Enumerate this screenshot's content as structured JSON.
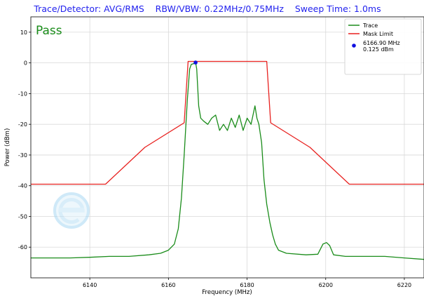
{
  "chart_data": {
    "type": "line",
    "title": "Trace/Detector: AVG/RMS    RBW/VBW: 0.22MHz/0.75MHz    Sweep Time: 1.0ms",
    "status_text": "Pass",
    "xlabel": "Frequency (MHz)",
    "ylabel": "Power (dBm)",
    "xlim": [
      6125,
      6225
    ],
    "ylim": [
      -70,
      15
    ],
    "x_ticks": [
      6140,
      6160,
      6180,
      6200,
      6220
    ],
    "y_ticks": [
      10,
      0,
      -10,
      -20,
      -30,
      -40,
      -50,
      -60
    ],
    "grid": true,
    "legend_position": "top-right",
    "series": [
      {
        "name": "Trace",
        "color": "#1a8c1a",
        "x": [
          6125,
          6130,
          6135,
          6140,
          6145,
          6150,
          6155,
          6158,
          6160,
          6161.5,
          6162.5,
          6163.3,
          6164,
          6164.8,
          6165.4,
          6165.8,
          6166.3,
          6166.9,
          6167.2,
          6167.7,
          6168.2,
          6169,
          6170,
          6171,
          6172,
          6173,
          6174,
          6175,
          6176,
          6177,
          6178,
          6179,
          6180,
          6181,
          6182,
          6182.5,
          6183,
          6183.7,
          6184.3,
          6185,
          6185.8,
          6186.5,
          6187.2,
          6188,
          6190,
          6195,
          6198,
          6199.3,
          6200.2,
          6201,
          6202,
          6205,
          6210,
          6215,
          6220,
          6225
        ],
        "y": [
          -63.5,
          -63.5,
          -63.5,
          -63.3,
          -63,
          -63,
          -62.5,
          -62,
          -61,
          -59,
          -54,
          -44,
          -30,
          -12,
          -2,
          -0.5,
          -0.3,
          0.125,
          -2,
          -14,
          -18,
          -19,
          -20,
          -18,
          -17,
          -22,
          -20,
          -22,
          -18,
          -21,
          -17,
          -22,
          -18,
          -20,
          -14,
          -18,
          -20,
          -26,
          -38,
          -46,
          -52,
          -56,
          -59,
          -61,
          -62,
          -62.5,
          -62.3,
          -59,
          -58.5,
          -59.5,
          -62.5,
          -63,
          -63,
          -63,
          -63.5,
          -64
        ]
      },
      {
        "name": "Mask Limit",
        "color": "#e8211f",
        "x": [
          6125,
          6144,
          6154,
          6164,
          6165,
          6185,
          6186,
          6196,
          6206,
          6225
        ],
        "y": [
          -39.5,
          -39.5,
          -27.5,
          -19.5,
          0.5,
          0.5,
          -19.5,
          -27.5,
          -39.5,
          -39.5
        ]
      }
    ],
    "markers": [
      {
        "label": "6166.90 MHz\n0.125 dBm",
        "x": 6166.9,
        "y": 0.125,
        "color": "#1010e0"
      }
    ]
  }
}
